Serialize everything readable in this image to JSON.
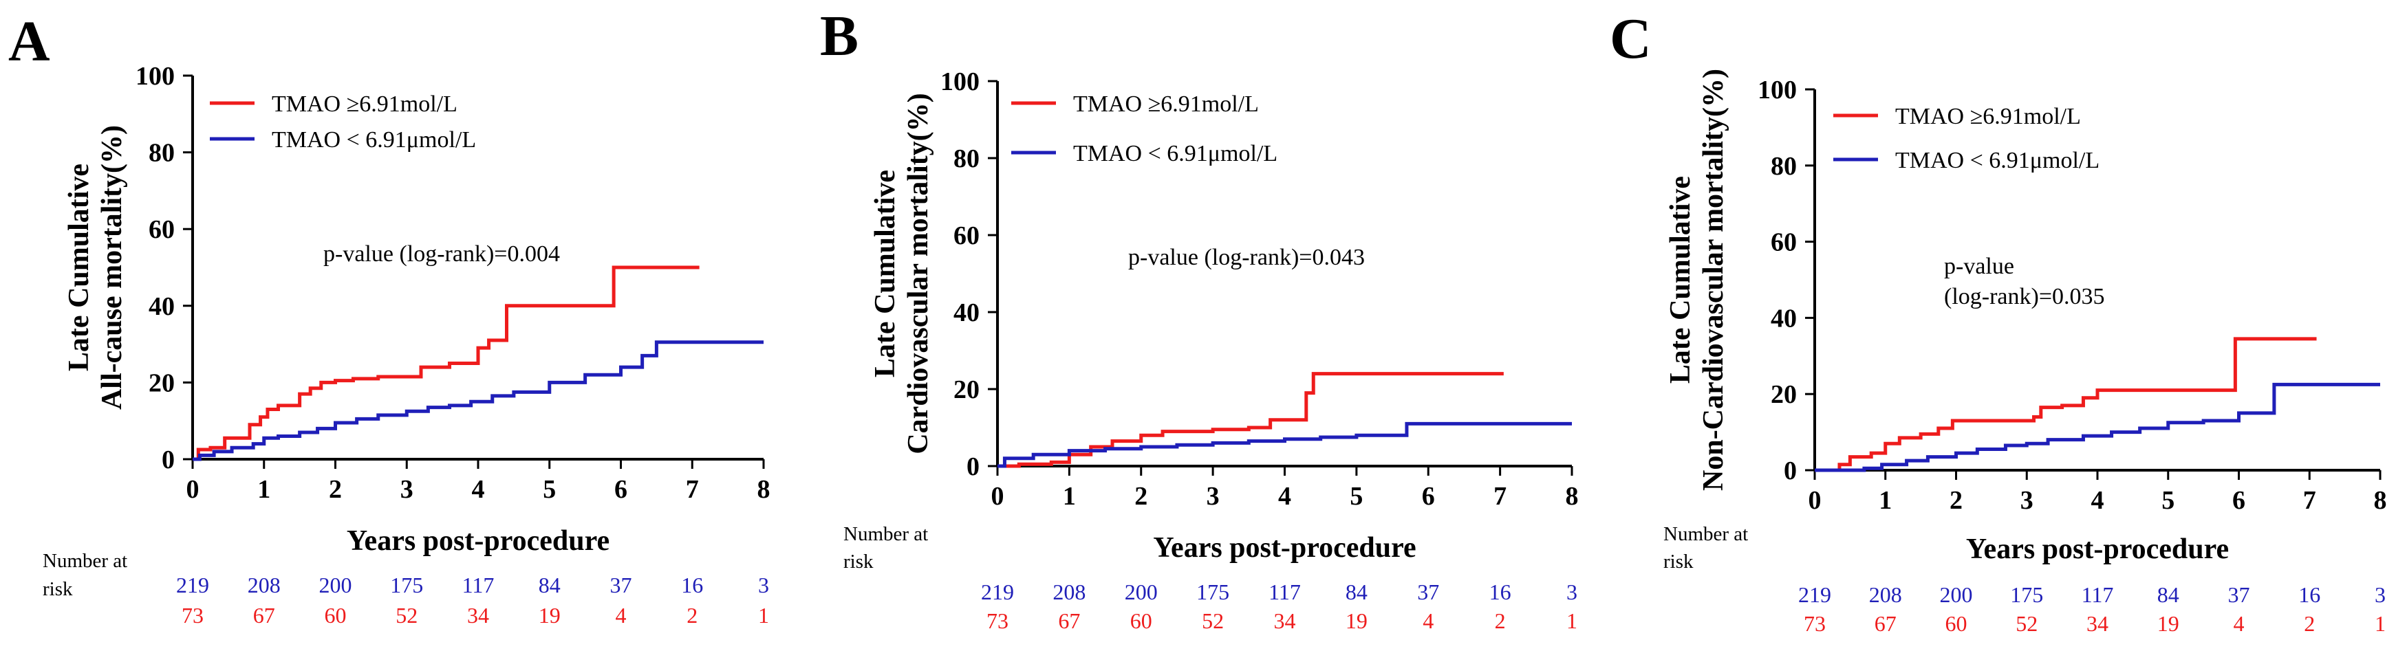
{
  "colors": {
    "high": "#ee1c1c",
    "low": "#1f1fb8",
    "axis": "#000000"
  },
  "risk_table": {
    "header_line1": "Number at",
    "header_line2": "risk"
  },
  "chart_data": [
    {
      "type": "line",
      "panel": "A",
      "title": "",
      "xlabel": "Years post-procedure",
      "ylabel_line1": "Late Cumulative",
      "ylabel_line2": "All-cause mortality(%)",
      "xlim": [
        0,
        8
      ],
      "ylim": [
        0,
        100
      ],
      "xticks": [
        "0",
        "1",
        "2",
        "3",
        "4",
        "5",
        "6",
        "7",
        "8"
      ],
      "yticks": [
        "0",
        "20",
        "40",
        "60",
        "80",
        "100"
      ],
      "annotation": [
        "p-value (log-rank)=0.004"
      ],
      "legend": {
        "position": "top-left",
        "entries": [
          "TMAO ≥6.91mol/L",
          "TMAO < 6.91μmol/L"
        ]
      },
      "series": [
        {
          "name": "TMAO ≥6.91mol/L",
          "color": "#ee1c1c",
          "x": [
            0,
            0.08,
            0.25,
            0.45,
            0.8,
            0.95,
            1.05,
            1.2,
            1.5,
            1.65,
            1.8,
            2.0,
            2.25,
            2.6,
            3.2,
            3.6,
            4.0,
            4.15,
            4.4,
            5.1,
            5.9,
            7.1
          ],
          "y": [
            0,
            2.5,
            3,
            5.5,
            9,
            11,
            13,
            14,
            17,
            18.5,
            20,
            20.5,
            21,
            21.5,
            24,
            25,
            29,
            31,
            40,
            40,
            50,
            50
          ]
        },
        {
          "name": "TMAO < 6.91μmol/L",
          "color": "#1f1fb8",
          "x": [
            0,
            0.1,
            0.3,
            0.55,
            0.85,
            1.0,
            1.2,
            1.5,
            1.75,
            2.0,
            2.3,
            2.6,
            3.0,
            3.3,
            3.6,
            3.9,
            4.2,
            4.5,
            5.0,
            5.5,
            6.0,
            6.3,
            6.5,
            8.0
          ],
          "y": [
            0,
            1,
            2,
            3,
            4,
            5.5,
            6,
            7,
            8,
            9.5,
            10.5,
            11.5,
            12.5,
            13.5,
            14,
            15,
            16.5,
            17.5,
            20,
            22,
            24,
            27,
            30.5,
            30.5
          ]
        }
      ],
      "at_risk": [
        {
          "color": "#1f1fb8",
          "values": [
            "219",
            "208",
            "200",
            "175",
            "117",
            "84",
            "37",
            "16",
            "3"
          ]
        },
        {
          "color": "#ee1c1c",
          "values": [
            "73",
            "67",
            "60",
            "52",
            "34",
            "19",
            "4",
            "2",
            "1"
          ]
        }
      ]
    },
    {
      "type": "line",
      "panel": "B",
      "title": "",
      "xlabel": "Years post-procedure",
      "ylabel_line1": "Late Cumulative",
      "ylabel_line2": "Cardiovascular mortality(%)",
      "xlim": [
        0,
        8
      ],
      "ylim": [
        0,
        100
      ],
      "xticks": [
        "0",
        "1",
        "2",
        "3",
        "4",
        "5",
        "6",
        "7",
        "8"
      ],
      "yticks": [
        "0",
        "20",
        "40",
        "60",
        "80",
        "100"
      ],
      "annotation": [
        "p-value (log-rank)=0.043"
      ],
      "legend": {
        "position": "top-left",
        "entries": [
          "TMAO ≥6.91mol/L",
          "TMAO < 6.91μmol/L"
        ]
      },
      "series": [
        {
          "name": "TMAO ≥6.91mol/L",
          "color": "#ee1c1c",
          "x": [
            0,
            0.3,
            0.75,
            1.0,
            1.3,
            1.6,
            2.0,
            2.3,
            3.0,
            3.5,
            3.8,
            4.3,
            4.4,
            7.05
          ],
          "y": [
            0,
            0.5,
            1,
            3,
            5,
            6.5,
            8,
            9,
            9.5,
            10,
            12,
            19,
            24,
            24
          ]
        },
        {
          "name": "TMAO < 6.91μmol/L",
          "color": "#1f1fb8",
          "x": [
            0,
            0.1,
            0.5,
            1.0,
            1.5,
            2.0,
            2.5,
            3.0,
            3.5,
            4.0,
            4.5,
            5.0,
            5.7,
            8.0
          ],
          "y": [
            0,
            2,
            3,
            4,
            4.5,
            5,
            5.5,
            6,
            6.5,
            7,
            7.5,
            8,
            11,
            11
          ]
        }
      ],
      "at_risk": [
        {
          "color": "#1f1fb8",
          "values": [
            "219",
            "208",
            "200",
            "175",
            "117",
            "84",
            "37",
            "16",
            "3"
          ]
        },
        {
          "color": "#ee1c1c",
          "values": [
            "73",
            "67",
            "60",
            "52",
            "34",
            "19",
            "4",
            "2",
            "1"
          ]
        }
      ]
    },
    {
      "type": "line",
      "panel": "C",
      "title": "",
      "xlabel": "Years post-procedure",
      "ylabel_line1": "Late Cumulative",
      "ylabel_line2": "Non-Cardiovascular mortality(%)",
      "xlim": [
        0,
        8
      ],
      "ylim": [
        0,
        100
      ],
      "xticks": [
        "0",
        "1",
        "2",
        "3",
        "4",
        "5",
        "6",
        "7",
        "8"
      ],
      "yticks": [
        "0",
        "20",
        "40",
        "60",
        "80",
        "100"
      ],
      "annotation": [
        "p-value",
        "(log-rank)=0.035"
      ],
      "legend": {
        "position": "top-left",
        "entries": [
          "TMAO ≥6.91mol/L",
          "TMAO < 6.91μmol/L"
        ]
      },
      "series": [
        {
          "name": "TMAO ≥6.91mol/L",
          "color": "#ee1c1c",
          "x": [
            0,
            0.35,
            0.5,
            0.8,
            1.0,
            1.2,
            1.5,
            1.75,
            1.95,
            2.6,
            3.1,
            3.2,
            3.5,
            3.8,
            4.0,
            5.0,
            5.95,
            7.1
          ],
          "y": [
            0,
            1.5,
            3.5,
            4.5,
            7,
            8.5,
            9.5,
            11,
            13,
            13,
            14,
            16.5,
            17,
            19,
            21,
            21,
            34.5,
            34.5
          ]
        },
        {
          "name": "TMAO < 6.91μmol/L",
          "color": "#1f1fb8",
          "x": [
            0,
            0.7,
            0.95,
            1.3,
            1.6,
            2.0,
            2.3,
            2.7,
            3.0,
            3.3,
            3.8,
            4.2,
            4.6,
            5.0,
            5.5,
            6.0,
            6.5,
            8.0
          ],
          "y": [
            0,
            0.5,
            1.5,
            2.5,
            3.5,
            4.5,
            5.5,
            6.5,
            7,
            8,
            9,
            10,
            11,
            12.5,
            13,
            15,
            22.5,
            22.5
          ]
        }
      ],
      "at_risk": [
        {
          "color": "#1f1fb8",
          "values": [
            "219",
            "208",
            "200",
            "175",
            "117",
            "84",
            "37",
            "16",
            "3"
          ]
        },
        {
          "color": "#ee1c1c",
          "values": [
            "73",
            "67",
            "60",
            "52",
            "34",
            "19",
            "4",
            "2",
            "1"
          ]
        }
      ]
    }
  ]
}
